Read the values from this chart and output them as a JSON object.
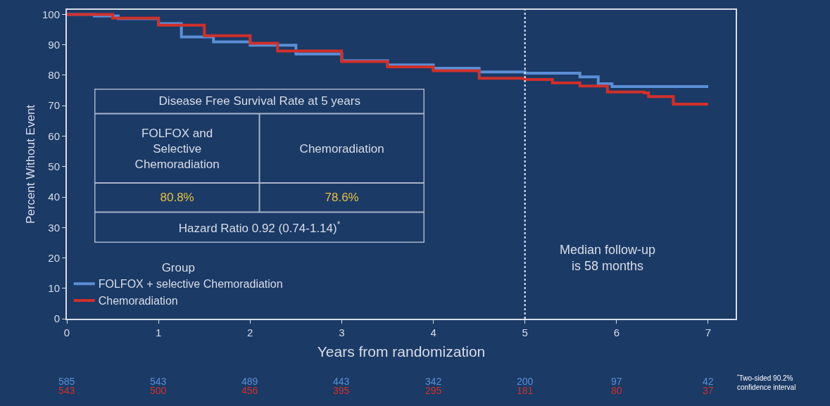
{
  "chart_data": {
    "type": "step",
    "xlabel": "Years from randomization",
    "ylabel": "Percent Without Event",
    "legend_title": "Group",
    "legend": "bottom left",
    "xlim": [
      0,
      7.3
    ],
    "xticks": [
      0,
      1,
      2,
      3,
      4,
      5,
      6,
      7
    ],
    "ylim": [
      0,
      101.5
    ],
    "yticks": [
      0,
      10,
      20,
      30,
      40,
      50,
      60,
      70,
      80,
      90,
      100
    ],
    "grid": false,
    "line_style": "solid",
    "marker": "none",
    "series": [
      {
        "name": "FOLFOX + selective Chemoradiation",
        "color": "#5b8fd6",
        "x": [
          0,
          0.3,
          0.56,
          1.0,
          1.25,
          1.6,
          2.0,
          2.5,
          3.0,
          3.5,
          4.0,
          4.5,
          5.0,
          5.6,
          5.8,
          5.95,
          7.0
        ],
        "values": [
          100,
          99.5,
          98.6,
          97,
          92.6,
          91,
          89.9,
          87,
          84.8,
          83.4,
          82.3,
          81.1,
          80.7,
          79.5,
          77.2,
          76.3,
          76.3
        ]
      },
      {
        "name": "Chemoradiation",
        "color": "#d0302a",
        "x": [
          0,
          0.5,
          1.0,
          1.5,
          2.0,
          2.3,
          3.0,
          3.5,
          4.0,
          4.5,
          5.0,
          5.3,
          5.6,
          5.9,
          6.3,
          6.35,
          6.6,
          6.62,
          7.0
        ],
        "values": [
          100,
          98.8,
          96.5,
          93,
          90.5,
          88,
          84.5,
          82.8,
          81.5,
          79,
          78.6,
          77.5,
          76.5,
          74.5,
          74.2,
          73,
          73,
          70.5,
          70.5
        ]
      }
    ],
    "ref_lines": [
      {
        "axis": "x",
        "value": 5,
        "color": "#e8e8f0",
        "line_style": "dotted"
      }
    ],
    "annotations": [
      "Disease Free Survival Rate at 5 years",
      "FOLFOX and Selective Chemoradiation",
      "Chemoradiation",
      "80.8%",
      "78.6%",
      "Hazard Ratio 0.92 (0.74-1.14)$^{*}$",
      "585",
      "543",
      "489",
      "443",
      "342",
      "200",
      "97",
      "42",
      "543",
      "500",
      "456",
      "395",
      "295",
      "181",
      "80",
      "37",
      "$^{*}$Two-sided 90.2% confidence interval",
      "Median follow-up is 58 months"
    ]
  }
}
